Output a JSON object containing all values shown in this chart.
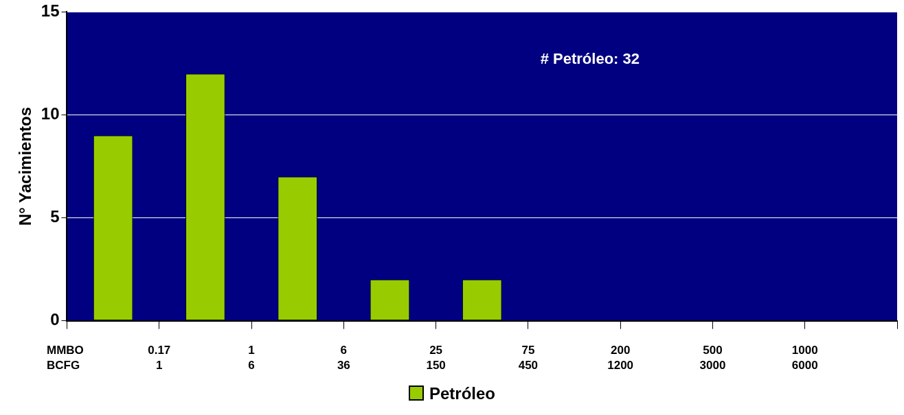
{
  "chart_data": {
    "type": "bar",
    "ylabel": "N° Yacimientos",
    "xlabel": "MMBO\nBCFG",
    "categories": [
      null,
      null,
      null,
      null,
      null,
      null,
      null,
      null,
      null
    ],
    "series": [
      {
        "name": "Petróleo",
        "color": "#99cc00",
        "values": [
          9,
          12,
          7,
          2,
          2,
          0,
          0,
          0,
          0
        ]
      }
    ],
    "ylim": [
      0,
      15
    ],
    "yticks": [
      0,
      5,
      10,
      15
    ],
    "grid": "y",
    "legend": "bottom",
    "annotations": [
      "# Petróleo: 32",
      "0.17\n1",
      "1\n6",
      "6\n36",
      "25\n150",
      "75\n450",
      "200\n1200",
      "500\n3000",
      "1000\n6000"
    ]
  }
}
